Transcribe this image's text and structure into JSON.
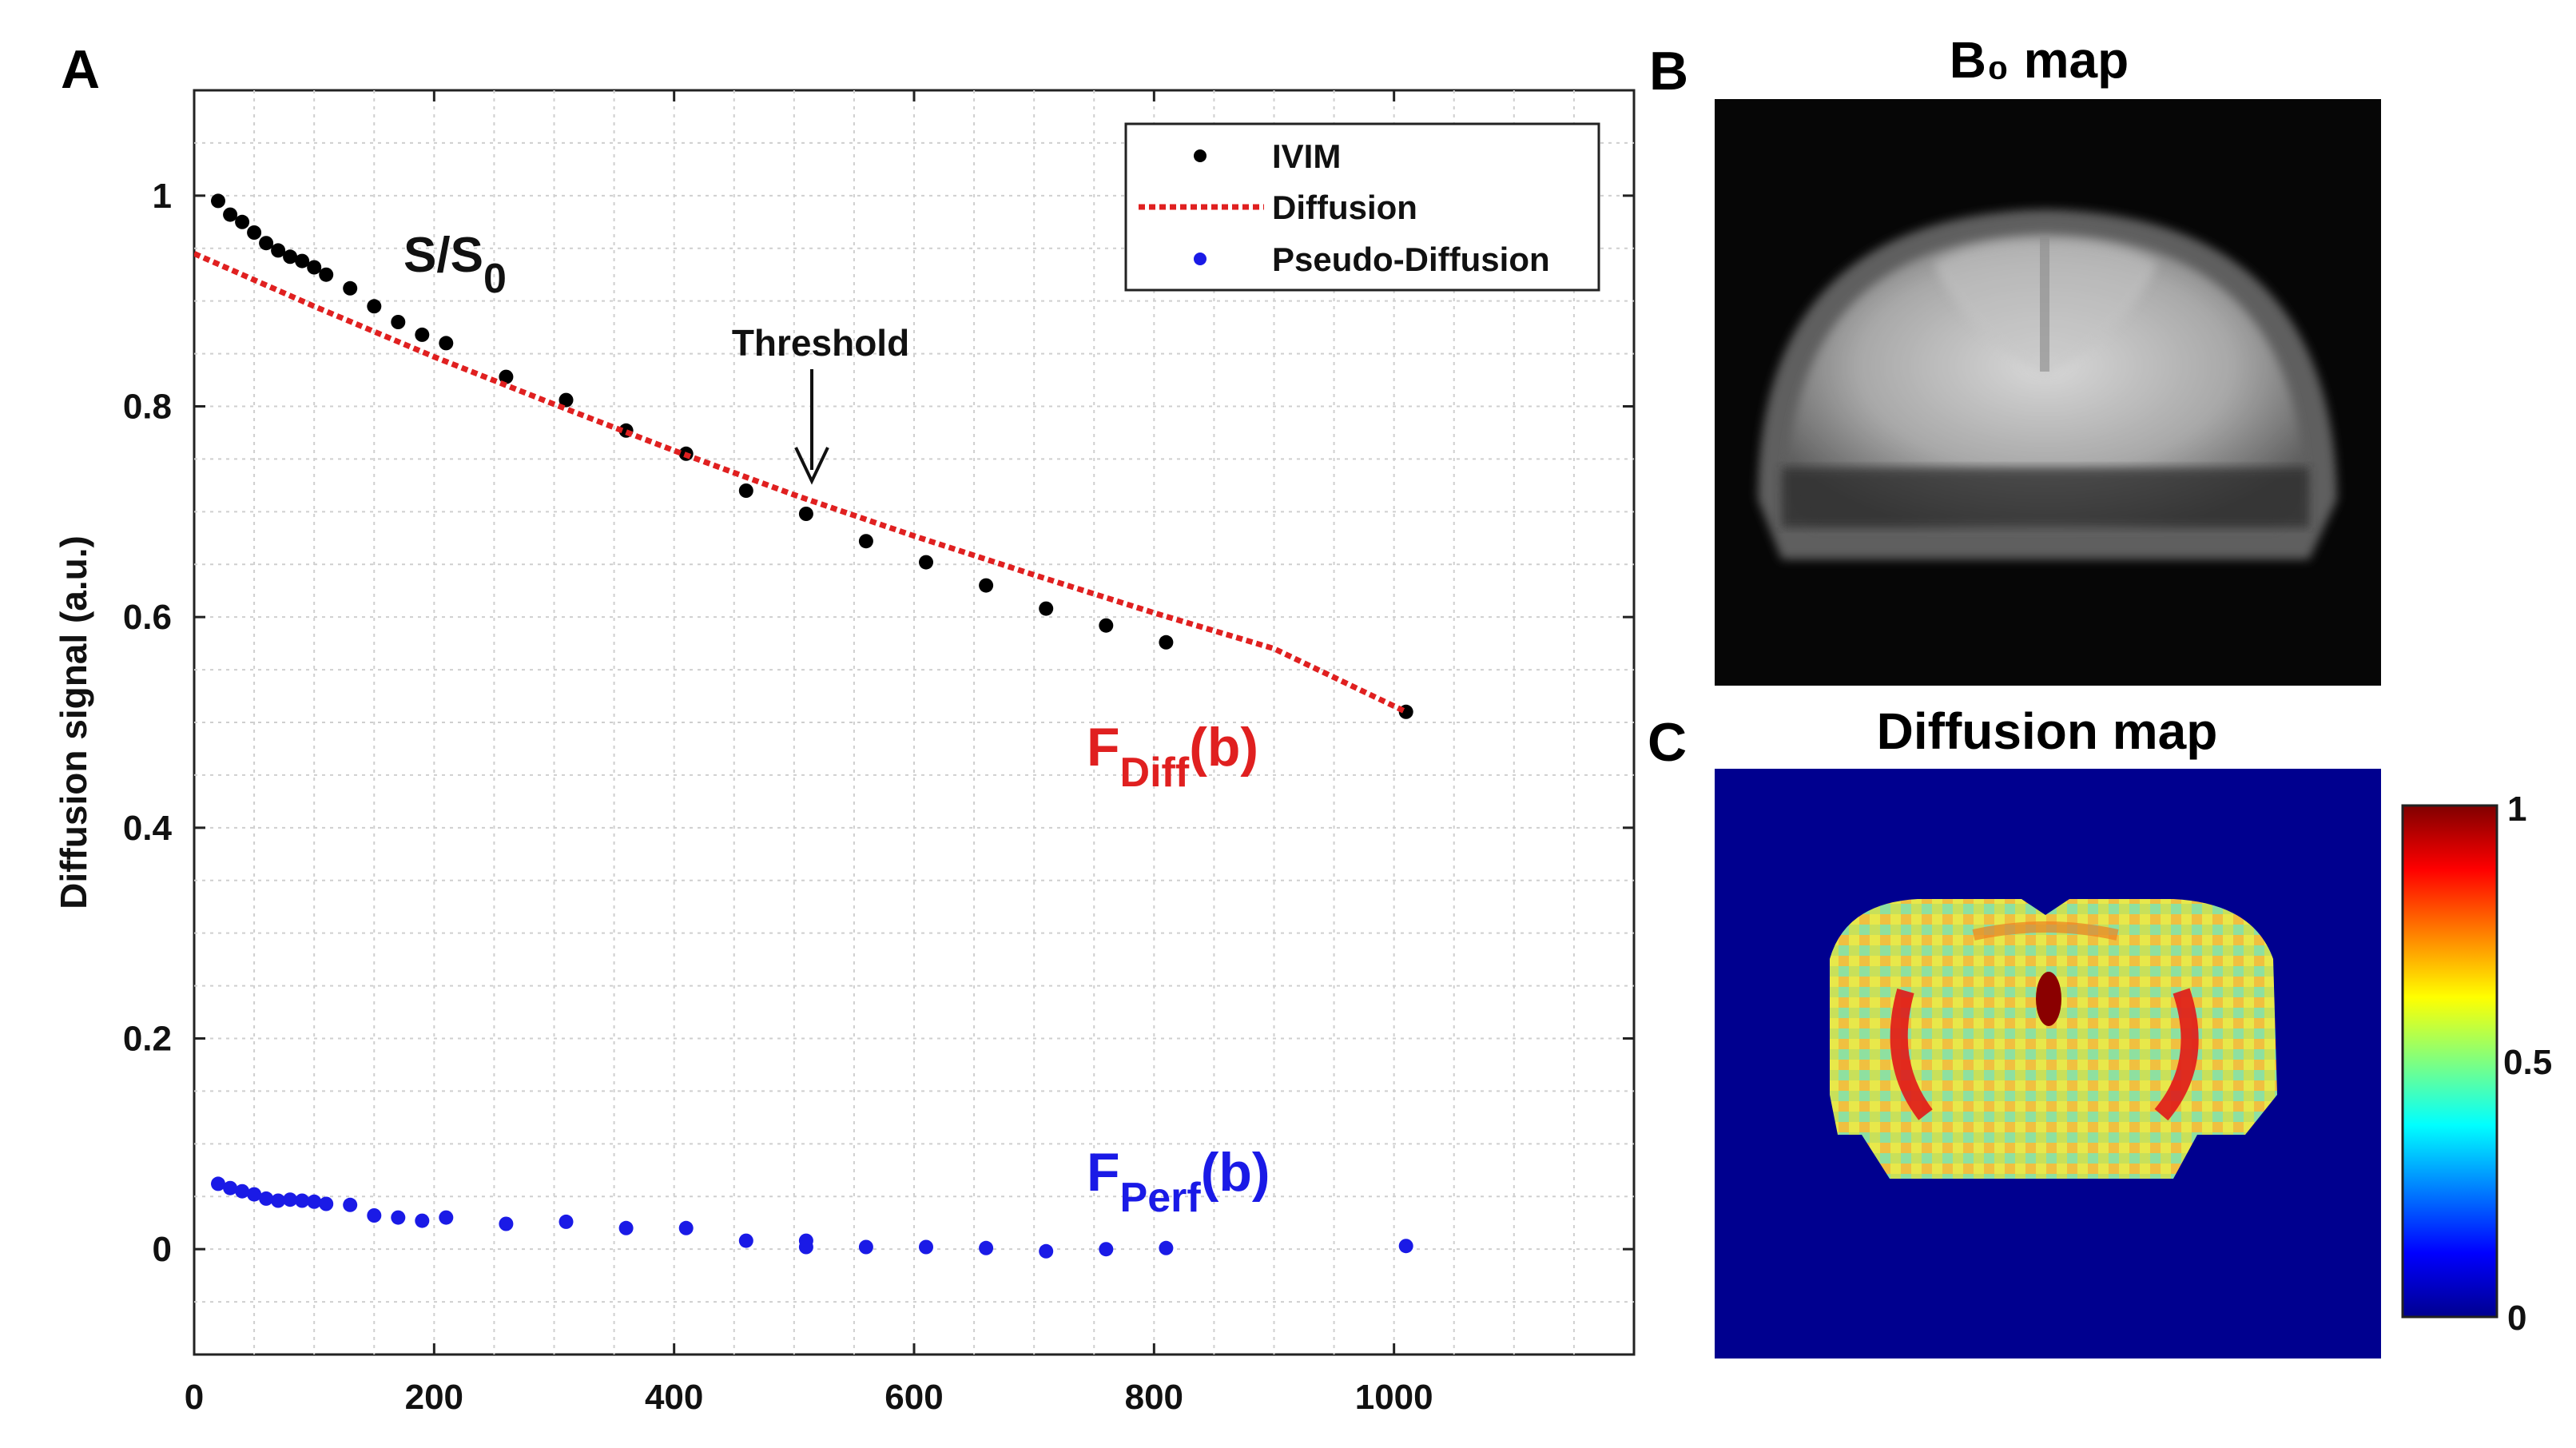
{
  "panels": {
    "a_label": "A",
    "b_label": "B",
    "c_label": "C",
    "b_title": "B₀ map",
    "c_title": "Diffusion map"
  },
  "annotations": {
    "signal_label_main": "S/S",
    "signal_label_sub": "0",
    "threshold": "Threshold",
    "fdiff_main": "F",
    "fdiff_sub": "Diff",
    "fdiff_suffix": "(b)",
    "fperf_main": "F",
    "fperf_sub": "Perf",
    "fperf_suffix": "(b)"
  },
  "colorbar": {
    "tick_labels": [
      "0",
      "0.5",
      "1"
    ]
  },
  "colors": {
    "ivim": "#000000",
    "diffusion": "#e02020",
    "pseudo": "#1a1ae6",
    "map_background": "#00008f"
  },
  "chart_data": {
    "type": "scatter",
    "title": "",
    "xlabel": "",
    "ylabel": "Diffusion signal (a.u.)",
    "xlim": [
      0,
      1200
    ],
    "ylim": [
      -0.1,
      1.1
    ],
    "x_ticks": [
      0,
      200,
      400,
      600,
      800,
      1000
    ],
    "y_ticks": [
      0,
      0.2,
      0.4,
      0.6,
      0.8,
      1
    ],
    "y_tick_labels": [
      "0",
      "0.2",
      "0.4",
      "0.6",
      "0.8",
      "1"
    ],
    "grid": true,
    "legend_position": "top-right",
    "threshold_b": 510,
    "series": [
      {
        "name": "IVIM",
        "kind": "markers",
        "x": [
          20,
          30,
          40,
          50,
          60,
          70,
          80,
          90,
          100,
          110,
          130,
          150,
          170,
          190,
          210,
          260,
          310,
          360,
          410,
          460,
          510,
          560,
          610,
          660,
          710,
          760,
          810,
          1010
        ],
        "y": [
          0.995,
          0.982,
          0.975,
          0.965,
          0.955,
          0.948,
          0.942,
          0.938,
          0.932,
          0.925,
          0.912,
          0.895,
          0.88,
          0.868,
          0.86,
          0.828,
          0.806,
          0.777,
          0.755,
          0.72,
          0.698,
          0.672,
          0.652,
          0.63,
          0.608,
          0.592,
          0.576,
          0.51
        ]
      },
      {
        "name": "Diffusion",
        "kind": "dotted-line",
        "x": [
          0,
          100,
          200,
          300,
          400,
          500,
          600,
          700,
          800,
          900,
          1010
        ],
        "y": [
          0.945,
          0.895,
          0.847,
          0.802,
          0.758,
          0.716,
          0.677,
          0.64,
          0.604,
          0.57,
          0.51
        ]
      },
      {
        "name": "Pseudo-Diffusion",
        "kind": "markers",
        "x": [
          20,
          30,
          40,
          50,
          60,
          70,
          80,
          90,
          100,
          110,
          130,
          150,
          170,
          190,
          210,
          260,
          310,
          360,
          410,
          460,
          510,
          510,
          560,
          610,
          660,
          710,
          760,
          810,
          1010
        ],
        "y": [
          0.062,
          0.058,
          0.055,
          0.052,
          0.048,
          0.046,
          0.047,
          0.046,
          0.045,
          0.043,
          0.042,
          0.032,
          0.03,
          0.027,
          0.03,
          0.024,
          0.026,
          0.02,
          0.02,
          0.008,
          0.008,
          0.002,
          0.002,
          0.002,
          0.001,
          -0.002,
          0.0,
          0.001,
          0.003
        ]
      }
    ]
  }
}
